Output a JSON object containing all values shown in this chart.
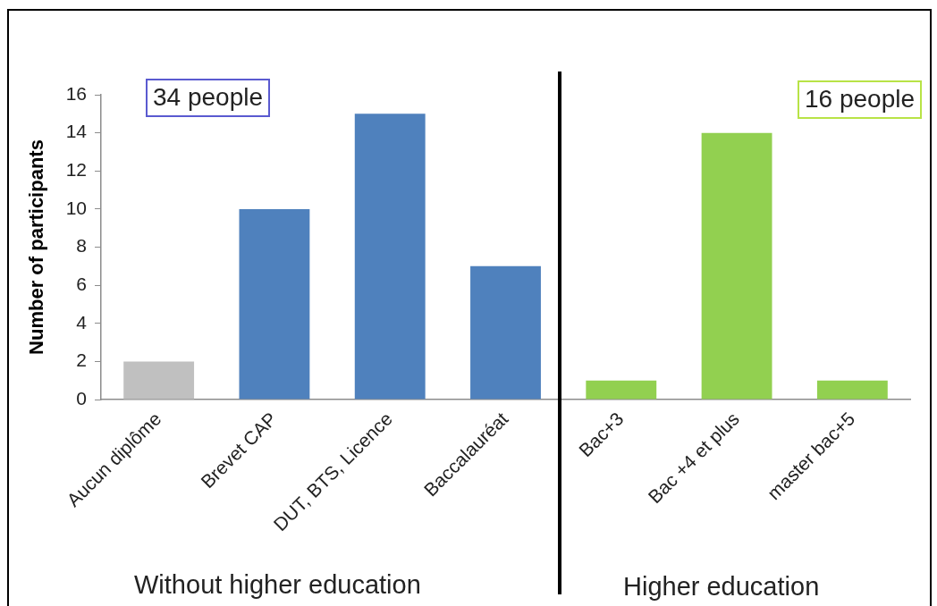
{
  "chart_data": {
    "type": "bar",
    "ylabel": "Number of participants",
    "categories": [
      "Aucun diplôme",
      "Brevet CAP",
      "DUT, BTS, Licence",
      "Baccalauréat",
      "Bac+3",
      "Bac +4 et plus",
      "master bac+5"
    ],
    "values": [
      2,
      10,
      15,
      7,
      1,
      14,
      1
    ],
    "colors": [
      "#c0c0c0",
      "#4f81bd",
      "#4f81bd",
      "#4f81bd",
      "#92d050",
      "#92d050",
      "#92d050"
    ],
    "ylim": [
      0,
      16
    ],
    "yticks": [
      0,
      2,
      4,
      6,
      8,
      10,
      12,
      14,
      16
    ],
    "annotations": [
      "34 people",
      "16 people",
      "Without higher education",
      "Higher education"
    ]
  }
}
